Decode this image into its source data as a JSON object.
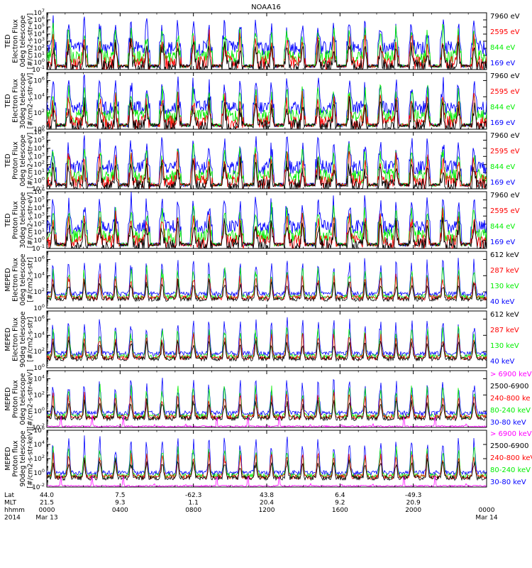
{
  "title": "NOAA16",
  "colors": {
    "blue": "#0000ff",
    "red": "#ff0000",
    "green": "#00ee00",
    "black": "#000000",
    "magenta": "#ff00ff"
  },
  "chart_data": [
    {
      "type": "line",
      "ylabel": [
        "TED",
        "Electron Flux",
        "0deg telescope",
        "[#/cm2-s-str-eV]"
      ],
      "yscale": "log",
      "ylim_exp": [
        -1,
        7
      ],
      "yticks": [
        "10^-1",
        "10^0",
        "10^1",
        "10^2",
        "10^3",
        "10^4",
        "10^5",
        "10^6",
        "10^7"
      ],
      "series": [
        {
          "name": "7960 eV",
          "color": "black"
        },
        {
          "name": "2595 eV",
          "color": "red"
        },
        {
          "name": "844 eV",
          "color": "green"
        },
        {
          "name": "169 eV",
          "color": "blue"
        }
      ]
    },
    {
      "type": "line",
      "ylabel": [
        "TED",
        "Electron Flux",
        "30deg telescope",
        "[#/cm2-s-str-eV]"
      ],
      "yscale": "log",
      "ylim_exp": [
        0,
        7
      ],
      "yticks": [
        "10^0",
        "10^2",
        "10^4",
        "10^6"
      ],
      "series": [
        {
          "name": "7960 eV",
          "color": "black"
        },
        {
          "name": "2595 eV",
          "color": "red"
        },
        {
          "name": "844 eV",
          "color": "green"
        },
        {
          "name": "169 eV",
          "color": "blue"
        }
      ]
    },
    {
      "type": "line",
      "ylabel": [
        "TED",
        "Proton Flux",
        "0deg telescope",
        "[#/cm2-s-str-eV]"
      ],
      "yscale": "log",
      "ylim_exp": [
        -1,
        6
      ],
      "yticks": [
        "10^-1",
        "10^0",
        "10^1",
        "10^2",
        "10^3",
        "10^4",
        "10^5",
        "10^6"
      ],
      "series": [
        {
          "name": "7960 eV",
          "color": "black"
        },
        {
          "name": "2595 eV",
          "color": "red"
        },
        {
          "name": "844 eV",
          "color": "green"
        },
        {
          "name": "169 eV",
          "color": "blue"
        }
      ]
    },
    {
      "type": "line",
      "ylabel": [
        "TED",
        "Proton Flux",
        "30deg telescope",
        "[#/cm2-s-str-eV]"
      ],
      "yscale": "log",
      "ylim_exp": [
        -1,
        6
      ],
      "yticks": [
        "10^-1",
        "10^0",
        "10^1",
        "10^2",
        "10^3",
        "10^4",
        "10^5",
        "10^6"
      ],
      "series": [
        {
          "name": "7960 eV",
          "color": "black"
        },
        {
          "name": "2595 eV",
          "color": "red"
        },
        {
          "name": "844 eV",
          "color": "green"
        },
        {
          "name": "169 eV",
          "color": "blue"
        }
      ]
    },
    {
      "type": "line",
      "ylabel": [
        "MEPED",
        "Electron Flux",
        "0deg telescope",
        "[#/cm2-s-str]"
      ],
      "yscale": "log",
      "ylim_exp": [
        0,
        7
      ],
      "yticks": [
        "10^0",
        "10^2",
        "10^4",
        "10^6"
      ],
      "series": [
        {
          "name": "612 keV",
          "color": "black"
        },
        {
          "name": "287 keV",
          "color": "red"
        },
        {
          "name": "130 keV",
          "color": "green"
        },
        {
          "name": "40 keV",
          "color": "blue"
        }
      ]
    },
    {
      "type": "line",
      "ylabel": [
        "MEPED",
        "Electron Flux",
        "90deg telescope",
        "[#/cm2-s-str]"
      ],
      "yscale": "log",
      "ylim_exp": [
        0,
        7
      ],
      "yticks": [
        "10^0",
        "10^2",
        "10^4",
        "10^6"
      ],
      "series": [
        {
          "name": "612 keV",
          "color": "black"
        },
        {
          "name": "287 keV",
          "color": "red"
        },
        {
          "name": "130 keV",
          "color": "green"
        },
        {
          "name": "40 keV",
          "color": "blue"
        }
      ]
    },
    {
      "type": "line",
      "ylabel": [
        "MEPED",
        "Proton Flux",
        "0deg telescope",
        "[#/cm2-s-str-keV]"
      ],
      "yscale": "log",
      "ylim_exp": [
        -2,
        5
      ],
      "yticks": [
        "10^-2",
        "10^0",
        "10^2",
        "10^4"
      ],
      "series": [
        {
          "name": "> 6900 keV",
          "color": "magenta"
        },
        {
          "name": "2500-6900",
          "color": "black"
        },
        {
          "name": "240-800 ke",
          "color": "red"
        },
        {
          "name": "80-240 keV",
          "color": "green"
        },
        {
          "name": "30-80 keV",
          "color": "blue"
        }
      ]
    },
    {
      "type": "line",
      "ylabel": [
        "MEPED",
        "Proton flux",
        "90deg telescope",
        "[#/cm2-s-str-keV]"
      ],
      "yscale": "log",
      "ylim_exp": [
        -2,
        6
      ],
      "yticks": [
        "10^-2",
        "10^0",
        "10^2",
        "10^4",
        "10^6"
      ],
      "series": [
        {
          "name": "> 6900 keV",
          "color": "magenta"
        },
        {
          "name": "2500-6900",
          "color": "black"
        },
        {
          "name": "240-800 keV",
          "color": "red"
        },
        {
          "name": "80-240 keV",
          "color": "green"
        },
        {
          "name": "30-80 keV",
          "color": "blue"
        }
      ]
    }
  ],
  "x_axis": {
    "row_labels": [
      "Lat",
      "MLT",
      "hhmm",
      "2014"
    ],
    "ticks": [
      {
        "lat": "44.0",
        "mlt": "21.5",
        "hhmm": "0000",
        "date": "Mar 13"
      },
      {
        "lat": "7.5",
        "mlt": "9.3",
        "hhmm": "0400",
        "date": ""
      },
      {
        "lat": "-62.3",
        "mlt": "1.1",
        "hhmm": "0800",
        "date": ""
      },
      {
        "lat": "43.8",
        "mlt": "20.4",
        "hhmm": "1200",
        "date": ""
      },
      {
        "lat": "6.4",
        "mlt": "9.2",
        "hhmm": "1600",
        "date": ""
      },
      {
        "lat": "-49.3",
        "mlt": "20.9",
        "hhmm": "2000",
        "date": ""
      },
      {
        "lat": "",
        "mlt": "",
        "hhmm": "0000",
        "date": "Mar 14"
      }
    ],
    "range_hours": [
      0,
      24
    ],
    "orbit_period_hours": 1.702
  }
}
